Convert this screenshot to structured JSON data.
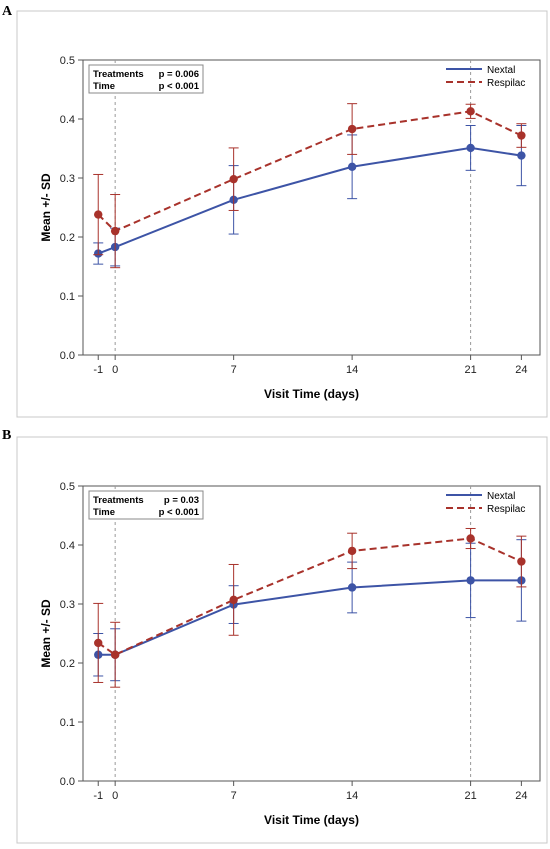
{
  "panels": [
    {
      "letter": "A"
    },
    {
      "letter": "B"
    }
  ],
  "chart_data": [
    {
      "type": "line",
      "panel": "A",
      "xlabel": "Visit Time (days)",
      "ylabel": "Mean +/- SD",
      "x": [
        -1,
        0,
        7,
        14,
        21,
        24
      ],
      "xticks": [
        -1,
        0,
        7,
        14,
        21,
        24
      ],
      "yticks": [
        "0.0",
        "0.1",
        "0.2",
        "0.3",
        "0.4",
        "0.5"
      ],
      "ylim": [
        0,
        0.5
      ],
      "reference_lines_x": [
        0,
        21
      ],
      "grid": false,
      "legend_position": "top-right",
      "stats": [
        {
          "label": "Treatments",
          "value": "p = 0.006"
        },
        {
          "label": "Time",
          "value": "p < 0.001"
        }
      ],
      "series": [
        {
          "name": "Nextal",
          "color": "#3d54a6",
          "dashed": false,
          "values": [
            0.172,
            0.183,
            0.263,
            0.319,
            0.351,
            0.338
          ],
          "sd": [
            0.018,
            0.032,
            0.058,
            0.054,
            0.038,
            0.051
          ]
        },
        {
          "name": "Respilac",
          "color": "#a8322b",
          "dashed": true,
          "values": [
            0.238,
            0.21,
            0.298,
            0.383,
            0.413,
            0.372
          ],
          "sd": [
            0.068,
            0.062,
            0.053,
            0.043,
            0.012,
            0.02
          ]
        }
      ]
    },
    {
      "type": "line",
      "panel": "B",
      "xlabel": "Visit Time (days)",
      "ylabel": "Mean +/- SD",
      "x": [
        -1,
        0,
        7,
        14,
        21,
        24
      ],
      "xticks": [
        -1,
        0,
        7,
        14,
        21,
        24
      ],
      "yticks": [
        "0.0",
        "0.1",
        "0.2",
        "0.3",
        "0.4",
        "0.5"
      ],
      "ylim": [
        0,
        0.5
      ],
      "reference_lines_x": [
        0,
        21
      ],
      "grid": false,
      "legend_position": "top-right",
      "stats": [
        {
          "label": "Treatments",
          "value": "p = 0.03"
        },
        {
          "label": "Time",
          "value": "p < 0.001"
        }
      ],
      "series": [
        {
          "name": "Nextal",
          "color": "#3d54a6",
          "dashed": false,
          "values": [
            0.214,
            0.214,
            0.299,
            0.328,
            0.34,
            0.34
          ],
          "sd": [
            0.036,
            0.044,
            0.032,
            0.043,
            0.063,
            0.069
          ]
        },
        {
          "name": "Respilac",
          "color": "#a8322b",
          "dashed": true,
          "values": [
            0.234,
            0.214,
            0.307,
            0.39,
            0.411,
            0.372
          ],
          "sd": [
            0.067,
            0.055,
            0.06,
            0.03,
            0.017,
            0.043
          ]
        }
      ]
    }
  ]
}
